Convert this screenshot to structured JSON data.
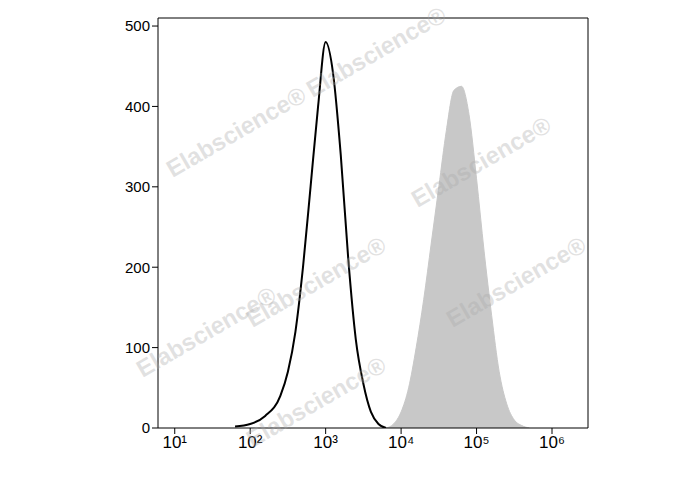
{
  "chart_data": {
    "type": "histogram_overlay",
    "log": "x",
    "grid": false,
    "watermark": "Elabscience®",
    "xlim": [
      6,
      3000000
    ],
    "xticks": [
      {
        "value": 10,
        "label": "10¹"
      },
      {
        "value": 100,
        "label": "10²"
      },
      {
        "value": 1000,
        "label": "10³"
      },
      {
        "value": 10000,
        "label": "10⁴"
      },
      {
        "value": 100000,
        "label": "10⁵"
      },
      {
        "value": 1000000,
        "label": "10⁶"
      }
    ],
    "ylim": [
      0,
      510
    ],
    "yticks": [
      0,
      100,
      200,
      300,
      400,
      500
    ],
    "series": [
      {
        "type": "line",
        "color": "#000000",
        "x": [
          63,
          100,
          158,
          251,
          316,
          398,
          501,
          631,
          794,
          1000,
          1259,
          1585,
          1995,
          2512,
          3162,
          3981,
          5012,
          6310
        ],
        "values": [
          2,
          5,
          15,
          40,
          70,
          120,
          200,
          300,
          400,
          480,
          440,
          340,
          210,
          110,
          55,
          20,
          5,
          0
        ]
      },
      {
        "type": "area",
        "color": "#c8c8c8",
        "x": [
          6310,
          7943,
          10000,
          12589,
          15849,
          19953,
          25119,
          31623,
          39811,
          50119,
          63096,
          79433,
          100000,
          125893,
          158489,
          199526,
          251189,
          316228,
          398107,
          501187
        ],
        "values": [
          0,
          5,
          20,
          50,
          100,
          160,
          230,
          300,
          370,
          420,
          425,
          390,
          310,
          220,
          140,
          70,
          30,
          10,
          3,
          0
        ]
      }
    ]
  }
}
